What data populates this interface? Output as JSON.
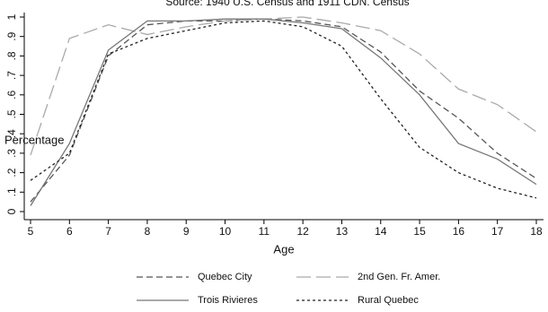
{
  "chart_data": {
    "type": "line",
    "title": "Source: 1940 U.S. Census and 1911 CDN. Census",
    "xlabel": "Age",
    "ylabel": "Percentage",
    "x": [
      5,
      6,
      7,
      8,
      9,
      10,
      11,
      12,
      13,
      14,
      15,
      16,
      17,
      18
    ],
    "xlim": [
      5,
      18
    ],
    "xticks": [
      5,
      6,
      7,
      8,
      9,
      10,
      11,
      12,
      13,
      14,
      15,
      16,
      17,
      18
    ],
    "ylim": [
      0,
      1
    ],
    "yticks": [
      0,
      {
        "value": 0.1,
        "label": ".1"
      },
      {
        "value": 0.2,
        "label": ".2"
      },
      {
        "value": 0.3,
        "label": ".3"
      },
      {
        "value": 0.4,
        "label": ".4"
      },
      {
        "value": 0.5,
        "label": ".5"
      },
      {
        "value": 0.6,
        "label": ".6"
      },
      {
        "value": 0.7,
        "label": ".7"
      },
      {
        "value": 0.8,
        "label": ".8"
      },
      {
        "value": 0.9,
        "label": ".9"
      },
      1
    ],
    "series": [
      {
        "name": "Quebec City",
        "color": "#555555",
        "dash": "7,4",
        "values": [
          0.05,
          0.29,
          0.8,
          0.96,
          0.98,
          0.98,
          0.99,
          0.98,
          0.95,
          0.82,
          0.62,
          0.48,
          0.3,
          0.17
        ]
      },
      {
        "name": "2nd Gen. Fr. Amer.",
        "color": "#aaaaaa",
        "dash": "16,6",
        "values": [
          0.29,
          0.89,
          0.96,
          0.91,
          0.95,
          0.98,
          0.99,
          1.0,
          0.97,
          0.93,
          0.81,
          0.63,
          0.55,
          0.41
        ]
      },
      {
        "name": "Trois Rivieres",
        "color": "#777777",
        "dash": "none",
        "values": [
          0.03,
          0.35,
          0.83,
          0.98,
          0.98,
          0.99,
          0.99,
          0.97,
          0.94,
          0.79,
          0.6,
          0.35,
          0.27,
          0.14
        ]
      },
      {
        "name": "Rural Quebec",
        "color": "#222222",
        "dash": "3,3",
        "values": [
          0.16,
          0.3,
          0.81,
          0.89,
          0.93,
          0.97,
          0.98,
          0.95,
          0.85,
          0.58,
          0.33,
          0.2,
          0.12,
          0.07
        ]
      }
    ]
  }
}
